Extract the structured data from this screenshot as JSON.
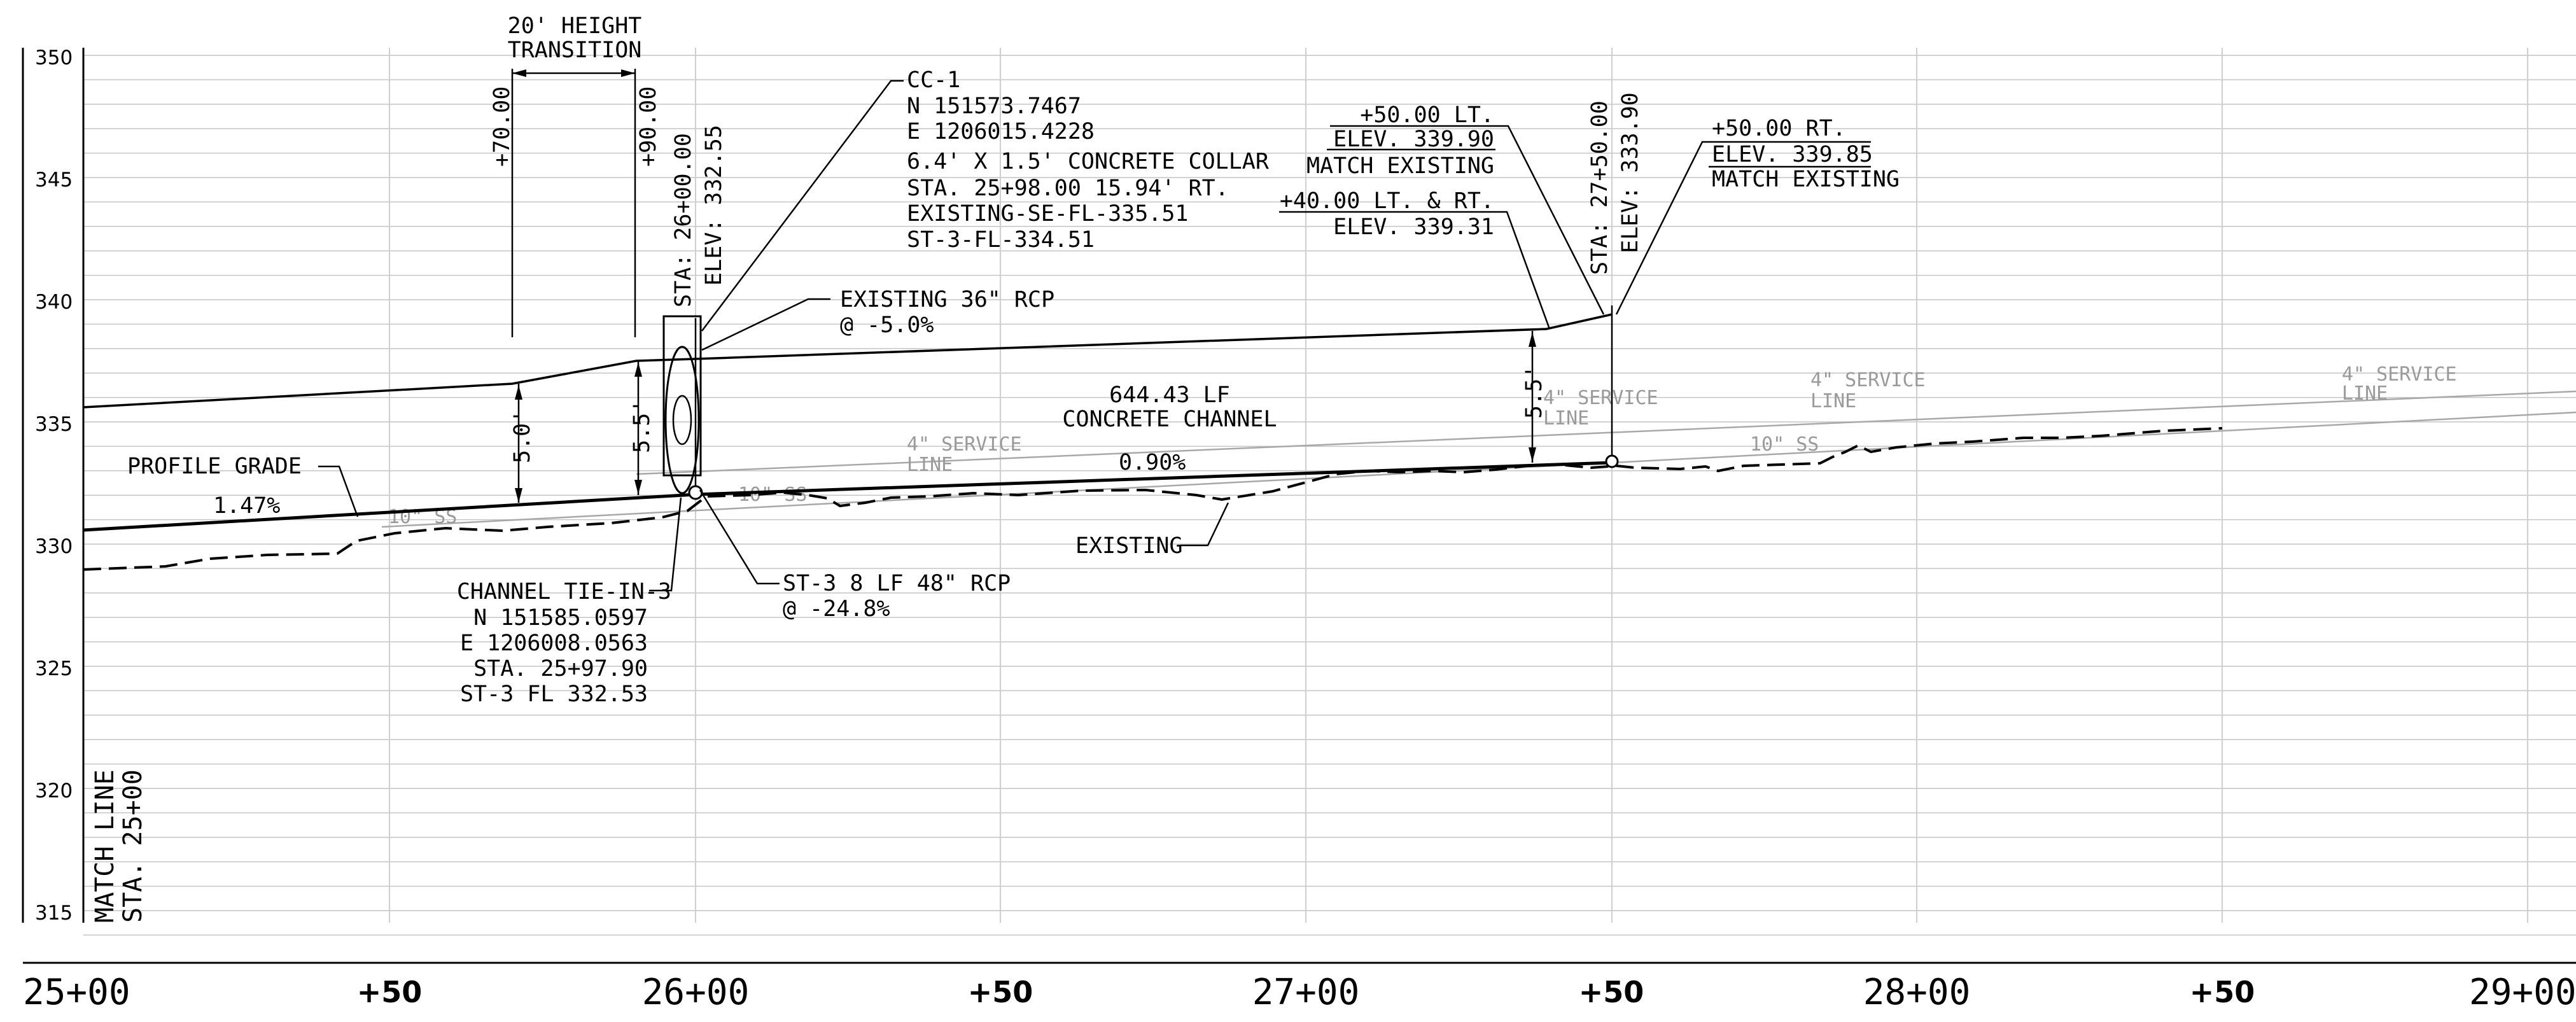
{
  "elevation_labels": [
    "350",
    "345",
    "340",
    "335",
    "330",
    "325",
    "320",
    "315"
  ],
  "station_labels": [
    "25+00",
    "+50",
    "26+00",
    "+50",
    "27+00",
    "+50",
    "28+00",
    "+50",
    "29+00"
  ],
  "notes": {
    "height_transition_1": "20' HEIGHT",
    "height_transition_2": "TRANSITION",
    "sta_70": "+70.00",
    "sta_90": "+90.00",
    "sta_2600": "STA: 26+00.00",
    "elev_3325": "ELEV: 332.55",
    "cc1_title": "CC-1",
    "cc1_n": "N 151573.7467",
    "cc1_e": "E 1206015.4228",
    "cc1_desc": "6.4' X 1.5' CONCRETE COLLAR",
    "cc1_sta": "STA. 25+98.00 15.94' RT.",
    "cc1_existing": "EXISTING-SE-FL-335.51",
    "cc1_st3": "ST-3-FL-334.51",
    "lt50": "+50.00 LT.",
    "lt50_elev": "ELEV. 339.90",
    "lt50_match": "MATCH EXISTING",
    "ltrt40": "+40.00 LT. & RT.",
    "ltrt40_elev": "ELEV. 339.31",
    "sta_2750": "STA: 27+50.00",
    "elev_3339": "ELEV: 333.90",
    "rt50": "+50.00 RT.",
    "rt50_elev": "ELEV. 339.85",
    "rt50_match": "MATCH EXISTING",
    "existing_rcp_1": "EXISTING 36\" RCP",
    "existing_rcp_2": "@ -5.0%",
    "channel_len": "644.43 LF",
    "channel_type": "CONCRETE CHANNEL",
    "dim_50": "5.0'",
    "dim_55_left": "5.5'",
    "dim_55_right": "5.5'",
    "profile_grade": "PROFILE GRADE",
    "slope_147": "1.47%",
    "slope_090": "0.90%",
    "existing_label": "EXISTING",
    "st3_rcp_1": "ST-3 8 LF 48\" RCP",
    "st3_rcp_2": "@ -24.8%",
    "tie_title": "CHANNEL TIE-IN-3",
    "tie_n": "N 151585.0597",
    "tie_e": "E 1206008.0563",
    "tie_sta": "STA. 25+97.90",
    "tie_fl": "ST-3 FL 332.53",
    "match_line_1": "MATCH LINE",
    "match_line_2": "STA. 25+00",
    "service_line_a": "4\" SERVICE",
    "service_line_a2": "LINE",
    "service_line_b": "4\" SERVICE",
    "service_line_b2": "LINE",
    "service_line_c": "4\" SERVICE",
    "service_line_c2": "LINE",
    "service_line_d": "4\" SERVICE",
    "service_line_d2": "LINE",
    "ss_a": "10\" SS",
    "ss_b": "10\" SS",
    "ss_c": "10\" SS"
  }
}
